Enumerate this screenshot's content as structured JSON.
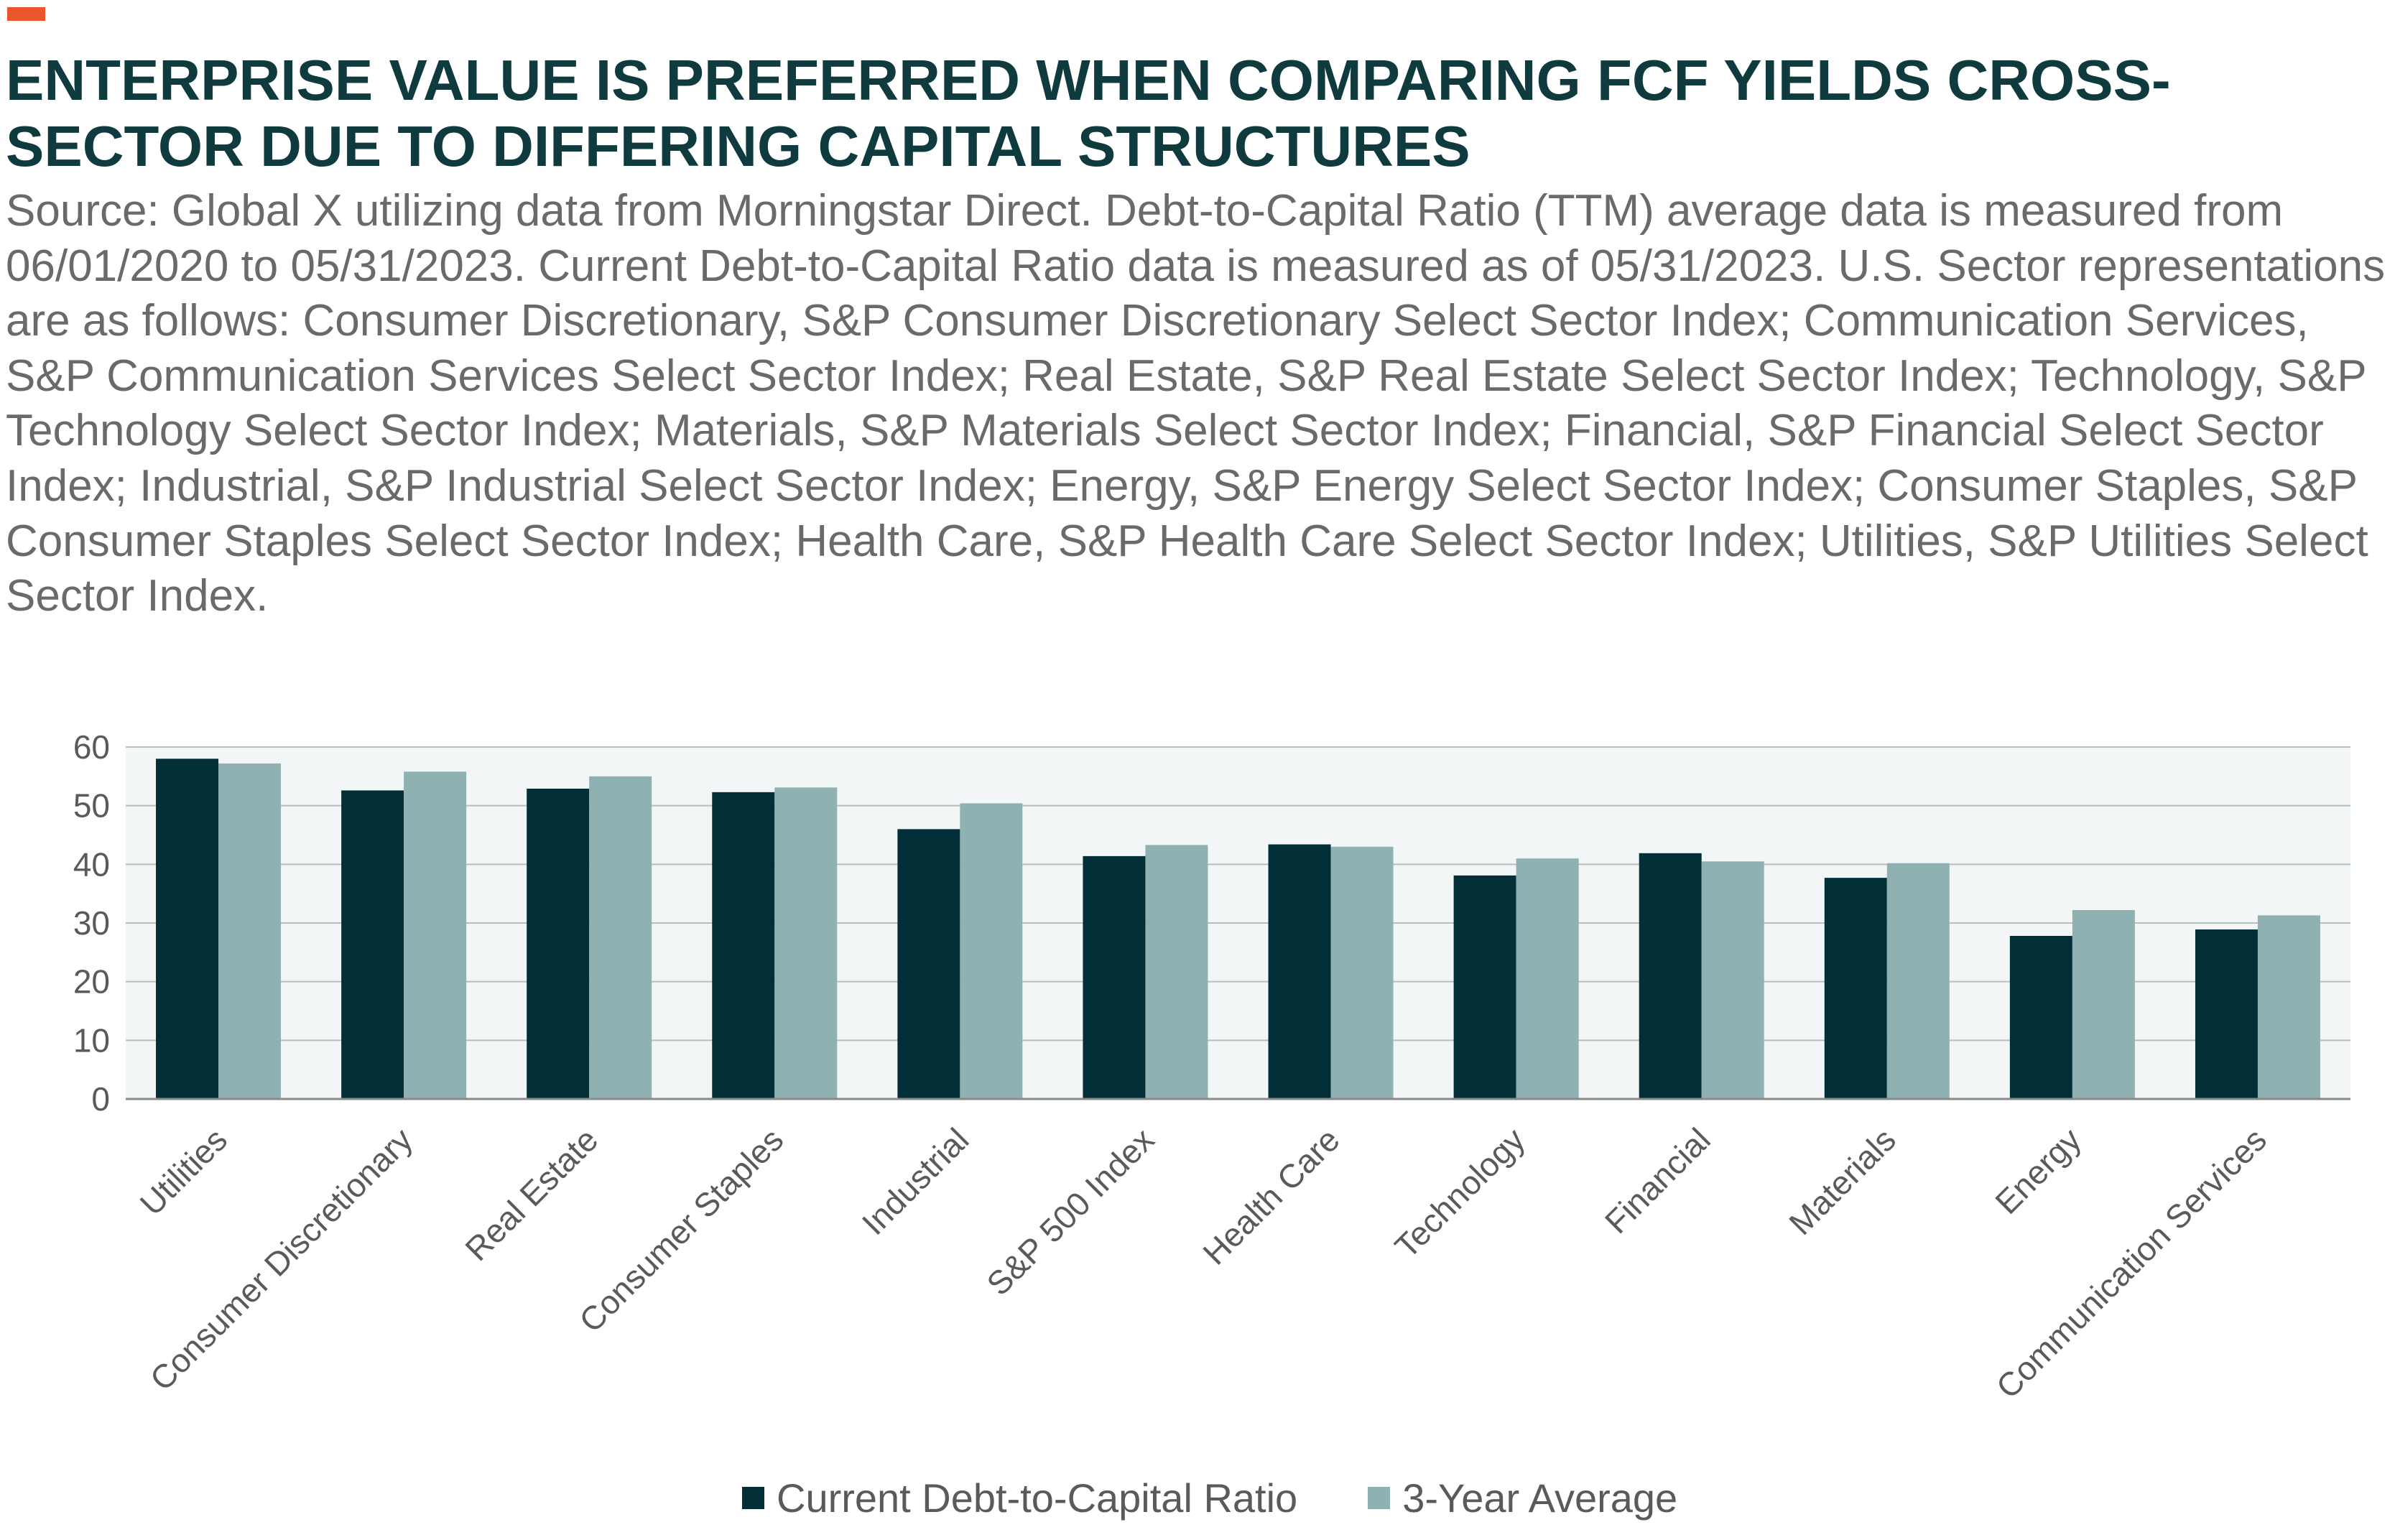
{
  "colors": {
    "accent": "#e8562a",
    "title": "#0f3a3e",
    "current_series": "#022e38",
    "average_series": "#8fb1b1",
    "plot_background": "#f2f6f6",
    "gridline": "#b8bebe"
  },
  "title": "ENTERPRISE VALUE IS PREFERRED WHEN COMPARING FCF YIELDS CROSS-SECTOR DUE TO DIFFERING CAPITAL STRUCTURES",
  "subtitle": "Source: Global X utilizing data from Morningstar Direct. Debt-to-Capital Ratio (TTM) average data is measured from 06/01/2020 to 05/31/2023. Current Debt-to-Capital Ratio data is measured as of 05/31/2023. U.S. Sector representations are as follows: Consumer Discretionary, S&P Consumer Discretionary Select Sector Index; Communication Services, S&P Communication Services Select Sector Index; Real Estate, S&P Real Estate Select Sector Index; Technology, S&P Technology Select Sector Index; Materials, S&P Materials Select Sector Index; Financial, S&P Financial Select Sector Index; Industrial, S&P Industrial Select Sector Index; Energy, S&P Energy Select Sector Index; Consumer Staples, S&P Consumer Staples Select Sector Index; Health Care, S&P Health Care Select Sector Index; Utilities, S&P Utilities Select Sector Index.",
  "chart_data": {
    "type": "bar",
    "categories": [
      "Utilities",
      "Consumer Discretionary",
      "Real Estate",
      "Consumer Staples",
      "Industrial",
      "S&P 500 Index",
      "Health Care",
      "Technology",
      "Financial",
      "Materials",
      "Energy",
      "Communication Services"
    ],
    "series": [
      {
        "name": "Current Debt-to-Capital Ratio",
        "values": [
          58,
          52.6,
          52.9,
          52.3,
          46,
          41.4,
          43.4,
          38.1,
          41.9,
          37.7,
          27.8,
          28.9
        ]
      },
      {
        "name": "3-Year Average",
        "values": [
          57.2,
          55.8,
          55,
          53.1,
          50.4,
          43.3,
          43,
          41,
          40.5,
          40.2,
          32.2,
          31.3
        ]
      }
    ],
    "yticks": [
      "0",
      "10",
      "20",
      "30",
      "40",
      "50",
      "60"
    ],
    "ylim": [
      0,
      60
    ],
    "grid": true,
    "legend_position": "bottom"
  }
}
